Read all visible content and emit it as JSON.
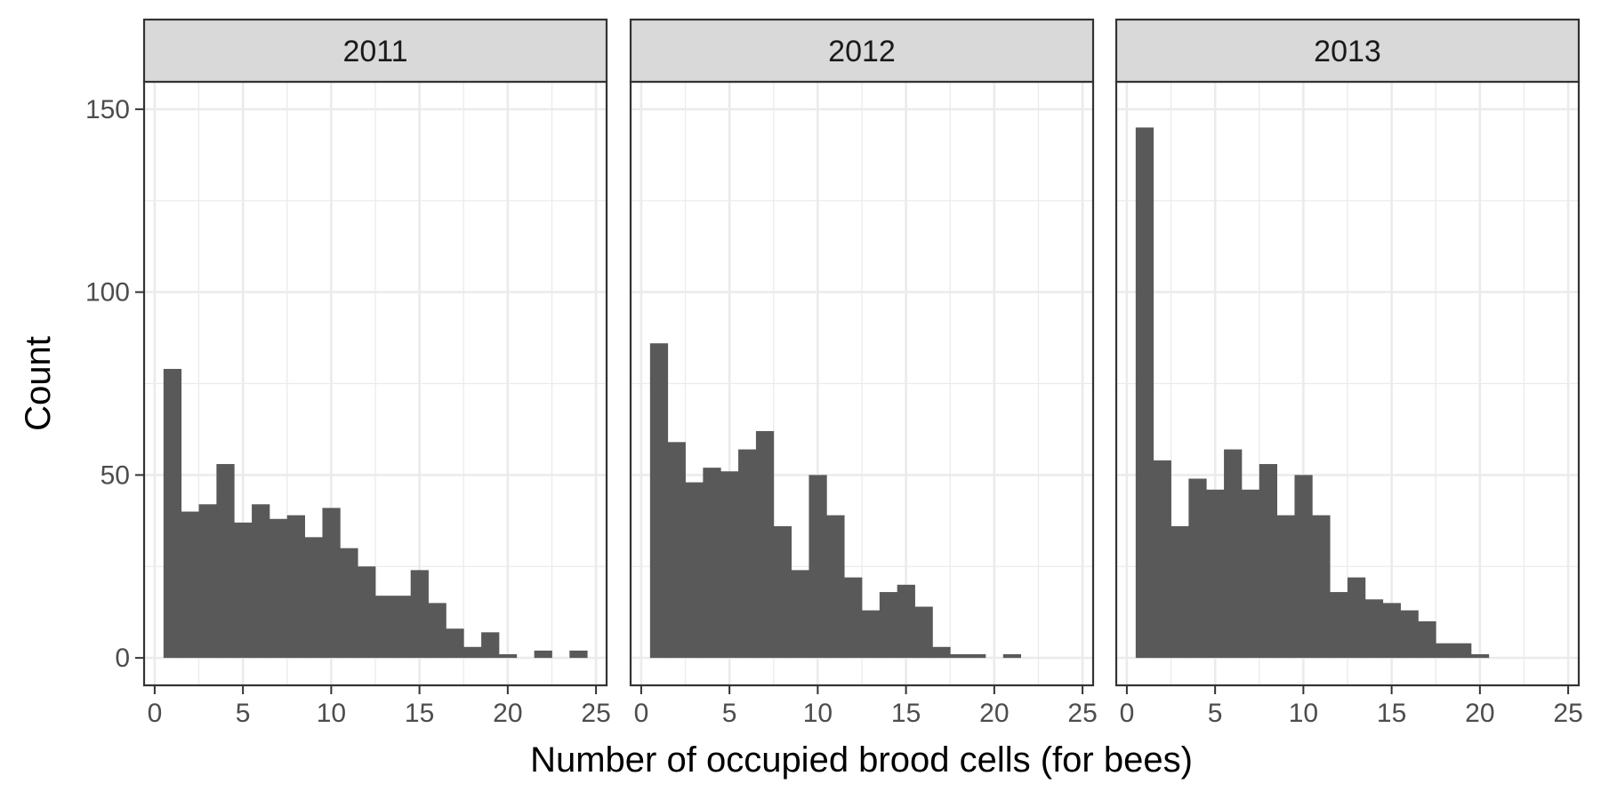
{
  "chart_data": {
    "type": "bar",
    "layout": "faceted-histogram",
    "xlabel": "Number of occupied brood cells (for bees)",
    "ylabel": "Count",
    "xlim": [
      -0.6,
      25.6
    ],
    "ylim": [
      -7.5,
      157.5
    ],
    "x_ticks": [
      0,
      5,
      10,
      15,
      20,
      25
    ],
    "y_ticks": [
      0,
      50,
      100,
      150
    ],
    "bar_color": "#595959",
    "bins": [
      1,
      2,
      3,
      4,
      5,
      6,
      7,
      8,
      9,
      10,
      11,
      12,
      13,
      14,
      15,
      16,
      17,
      18,
      19,
      20,
      21,
      22,
      23,
      24
    ],
    "panels": [
      {
        "label": "2011",
        "values": [
          79,
          40,
          42,
          53,
          37,
          42,
          38,
          39,
          33,
          41,
          30,
          25,
          17,
          17,
          24,
          15,
          8,
          3,
          7,
          1,
          0,
          2,
          0,
          2
        ]
      },
      {
        "label": "2012",
        "values": [
          86,
          59,
          48,
          52,
          51,
          57,
          62,
          36,
          24,
          50,
          39,
          22,
          13,
          18,
          20,
          14,
          3,
          1,
          1,
          0,
          1,
          0,
          0,
          0
        ]
      },
      {
        "label": "2013",
        "values": [
          145,
          54,
          36,
          49,
          46,
          57,
          46,
          53,
          39,
          50,
          39,
          18,
          22,
          16,
          15,
          13,
          10,
          4,
          4,
          1,
          0,
          0,
          0,
          0
        ]
      }
    ]
  }
}
